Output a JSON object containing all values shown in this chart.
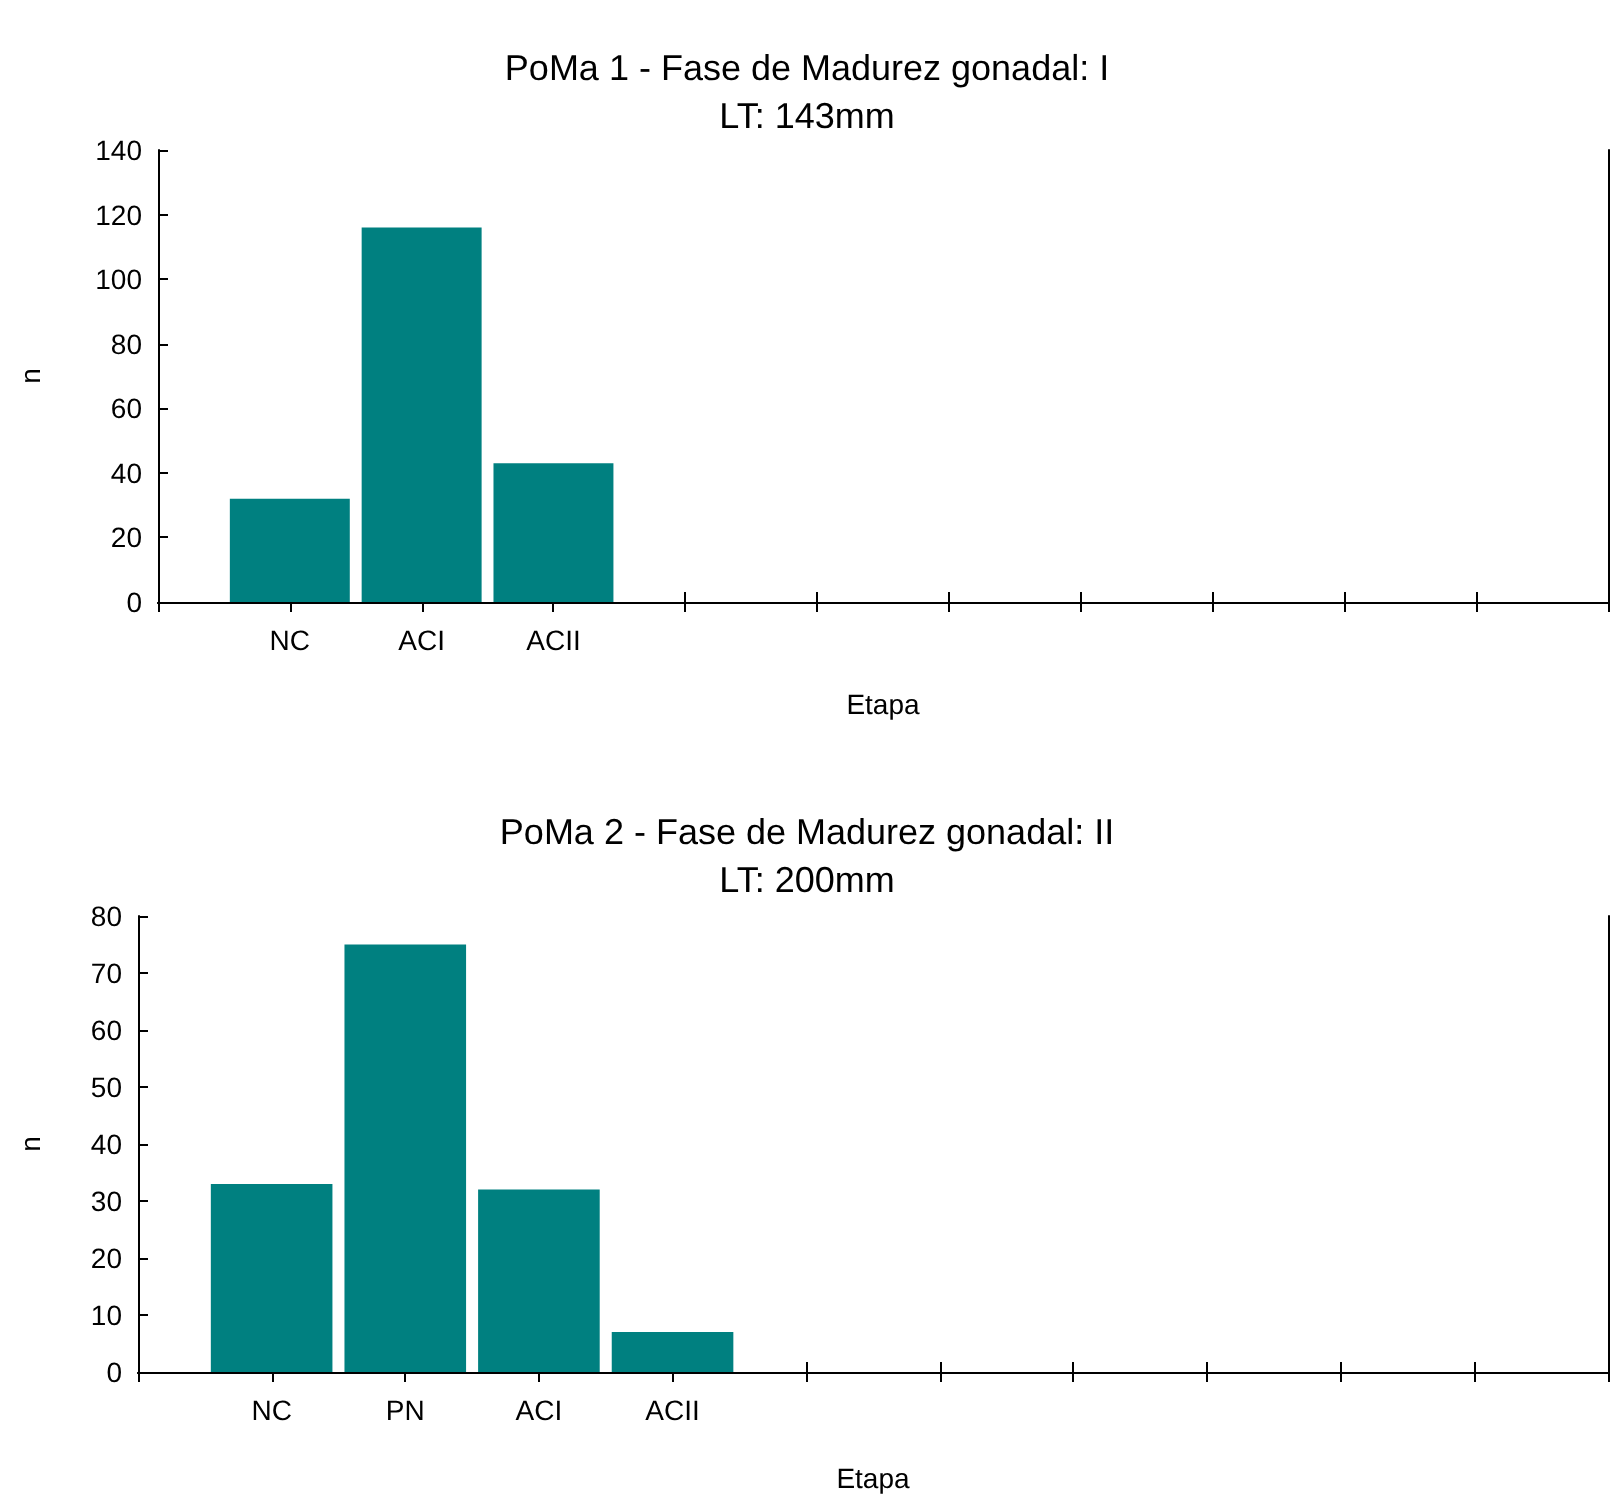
{
  "chart_data": [
    {
      "type": "bar",
      "title": "PoMa 1 - Fase de Madurez gonadal: I",
      "subtitle": "LT: 143mm",
      "xlabel": "Etapa",
      "ylabel": "n",
      "categories": [
        null,
        "NC",
        "ACI",
        "ACII",
        null,
        null,
        null,
        null,
        null,
        null,
        null,
        null
      ],
      "values": [
        null,
        32,
        116,
        43,
        null,
        null,
        null,
        null,
        null,
        null,
        null,
        null
      ],
      "color": "#008080",
      "ylim": [
        0,
        140
      ],
      "yticks": [
        0,
        20,
        40,
        60,
        80,
        100,
        120,
        140
      ],
      "grid": false
    },
    {
      "type": "bar",
      "title": "PoMa 2 - Fase de Madurez gonadal: II",
      "subtitle": "LT: 200mm",
      "xlabel": "Etapa",
      "ylabel": "n",
      "categories": [
        null,
        "NC",
        "PN",
        "ACI",
        "ACII",
        null,
        null,
        null,
        null,
        null,
        null,
        null
      ],
      "values": [
        null,
        33,
        75,
        32,
        7,
        null,
        null,
        null,
        null,
        null,
        null,
        null
      ],
      "color": "#008080",
      "ylim": [
        0,
        80
      ],
      "yticks": [
        0,
        10,
        20,
        30,
        40,
        50,
        60,
        70,
        80
      ],
      "grid": false
    }
  ]
}
